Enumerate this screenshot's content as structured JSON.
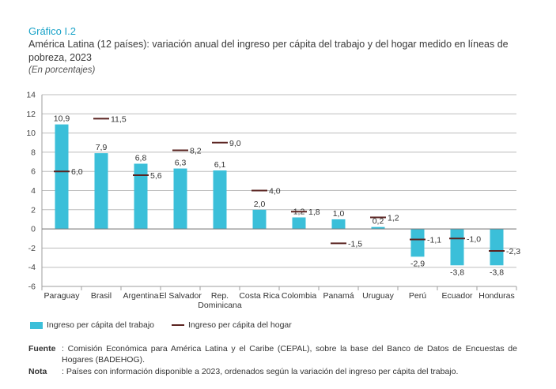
{
  "header": {
    "grafico": "Gráfico I.2",
    "title": "América Latina (12 países): variación anual del ingreso per cápita del trabajo y del hogar medido en líneas de pobreza, 2023",
    "subtitle": "(En porcentajes)"
  },
  "colors": {
    "bar": "#3bbfd9",
    "marker": "#5a2320",
    "grid": "#bdbdbd"
  },
  "legend": {
    "bar_label": "Ingreso per cápita del trabajo",
    "line_label": "Ingreso per cápita del hogar"
  },
  "notes": {
    "fuente_label": "Fuente",
    "fuente_text": ": Comisión Económica para América Latina y el Caribe (CEPAL), sobre la base del Banco de Datos de Encuestas de Hogares (BADEHOG).",
    "nota_label": "Nota",
    "nota_text": ": Países con información disponible a 2023, ordenados según la variación del ingreso per cápita del trabajo."
  },
  "chart_data": {
    "type": "bar",
    "categories": [
      "Paraguay",
      "Brasil",
      "Argentina",
      "El Salvador",
      "Rep. Dominicana",
      "Costa Rica",
      "Colombia",
      "Panamá",
      "Uruguay",
      "Perú",
      "Ecuador",
      "Honduras"
    ],
    "category_lines": [
      [
        "Paraguay"
      ],
      [
        "Brasil"
      ],
      [
        "Argentina"
      ],
      [
        "El Salvador"
      ],
      [
        "Rep.",
        "Dominicana"
      ],
      [
        "Costa Rica"
      ],
      [
        "Colombia"
      ],
      [
        "Panamá"
      ],
      [
        "Uruguay"
      ],
      [
        "Perú"
      ],
      [
        "Ecuador"
      ],
      [
        "Honduras"
      ]
    ],
    "series": [
      {
        "name": "Ingreso per cápita del trabajo",
        "type": "bar",
        "values": [
          10.9,
          7.9,
          6.8,
          6.3,
          6.1,
          2.0,
          1.2,
          1.0,
          0.2,
          -2.9,
          -3.8,
          -3.8
        ],
        "labels": [
          "10,9",
          "7,9",
          "6,8",
          "6,3",
          "6,1",
          "2,0",
          "1,2",
          "1,0",
          "0,2",
          "-2,9",
          "-3,8",
          "-3,8"
        ]
      },
      {
        "name": "Ingreso per cápita del hogar",
        "type": "marker",
        "values": [
          6.0,
          11.5,
          5.6,
          8.2,
          9.0,
          4.0,
          1.8,
          -1.5,
          1.2,
          -1.1,
          -1.0,
          -2.3
        ],
        "labels": [
          "6,0",
          "11,5",
          "5,6",
          "8,2",
          "9,0",
          "4,0",
          "1,8",
          "-1,5",
          "1,2",
          "-1,1",
          "-1,0",
          "-2,3"
        ]
      }
    ],
    "ylim": [
      -6,
      14
    ],
    "yticks": [
      -6,
      -4,
      -2,
      0,
      2,
      4,
      6,
      8,
      10,
      12,
      14
    ],
    "grid": true,
    "legend_position": "bottom-left"
  }
}
